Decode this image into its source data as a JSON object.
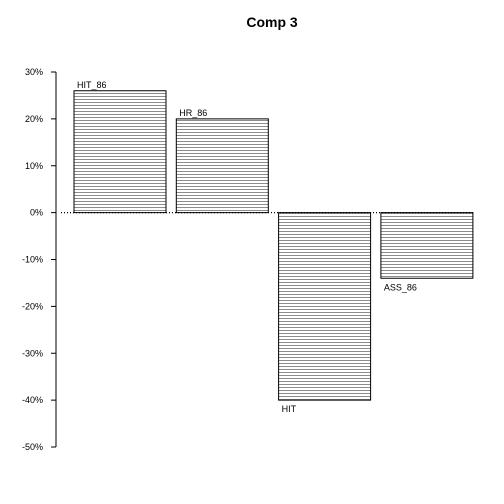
{
  "chart_data": {
    "type": "bar",
    "title": "Comp 3",
    "xlabel": "",
    "ylabel": "",
    "categories": [
      "HIT_86",
      "HR_86",
      "HIT",
      "ASS_86"
    ],
    "values": [
      0.26,
      0.2,
      -0.4,
      -0.14
    ],
    "ylim": [
      -0.5,
      0.3
    ],
    "yticks": [
      0.3,
      0.2,
      0.1,
      0.0,
      -0.1,
      -0.2,
      -0.3,
      -0.4,
      -0.5
    ],
    "ytick_labels": [
      "30%",
      "20%",
      "10%",
      "0%",
      "-10%",
      "-20%",
      "-30%",
      "-40%",
      "-50%"
    ],
    "grid": false,
    "bar_fill": "hatched-horizontal",
    "bar_color": "#000000",
    "zero_line": "dotted"
  }
}
